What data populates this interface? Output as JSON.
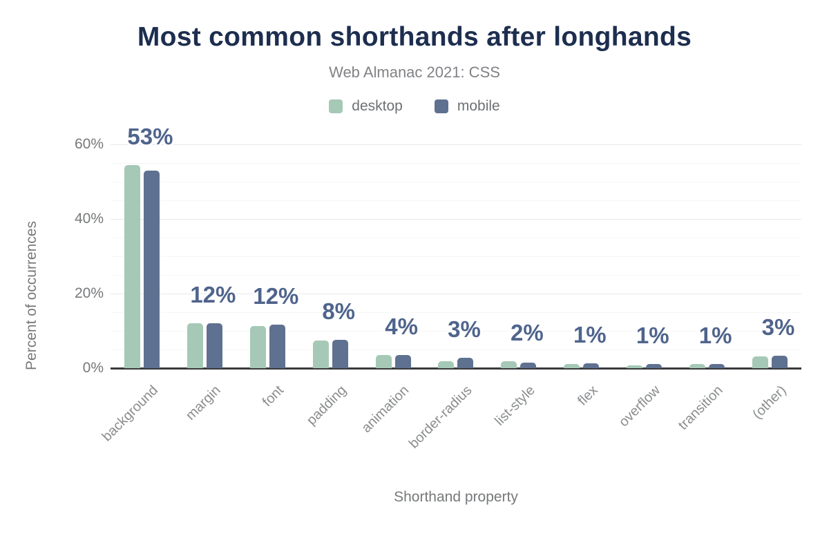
{
  "header": {
    "title": "Most common shorthands after longhands",
    "subtitle": "Web Almanac 2021: CSS"
  },
  "legend": {
    "items": [
      {
        "label": "desktop",
        "color": "#a5c9b6"
      },
      {
        "label": "mobile",
        "color": "#5f7190"
      }
    ]
  },
  "axes": {
    "y_label": "Percent of occurrences",
    "x_label": "Shorthand property",
    "y_tick_labels": [
      "0%",
      "20%",
      "40%",
      "60%"
    ]
  },
  "colors": {
    "title": "#1d2e4f",
    "subtitle": "#808285",
    "axis_text": "#76787a",
    "category_text": "#8a8c8e",
    "value_label": "#4f648c",
    "axis_line": "#38393b",
    "grid_major": "#e8e8e8",
    "grid_minor": "#f6f6f6",
    "desktop": "#a5c9b6",
    "mobile": "#5f7190"
  },
  "chart_data": {
    "type": "bar",
    "title": "Most common shorthands after longhands",
    "subtitle": "Web Almanac 2021: CSS",
    "categories": [
      "background",
      "margin",
      "font",
      "padding",
      "animation",
      "border-radius",
      "list-style",
      "flex",
      "overflow",
      "transition",
      "(other)"
    ],
    "series": [
      {
        "name": "desktop",
        "color": "#a5c9b6",
        "values": [
          54.5,
          12.0,
          11.3,
          7.5,
          3.5,
          1.9,
          1.8,
          1.1,
          0.7,
          1.2,
          3.2
        ]
      },
      {
        "name": "mobile",
        "color": "#5f7190",
        "values": [
          53.0,
          12.0,
          11.7,
          7.6,
          3.6,
          2.8,
          1.4,
          1.3,
          1.2,
          1.1,
          3.4
        ]
      }
    ],
    "bar_labels": [
      "53%",
      "12%",
      "12%",
      "8%",
      "4%",
      "3%",
      "2%",
      "1%",
      "1%",
      "1%",
      "3%"
    ],
    "xlabel": "Shorthand property",
    "ylabel": "Percent of occurrences",
    "ylim": [
      0,
      60
    ],
    "yticks": [
      0,
      20,
      40,
      60
    ],
    "minor_grid_step": 5,
    "grid": true,
    "legend_position": "top"
  }
}
